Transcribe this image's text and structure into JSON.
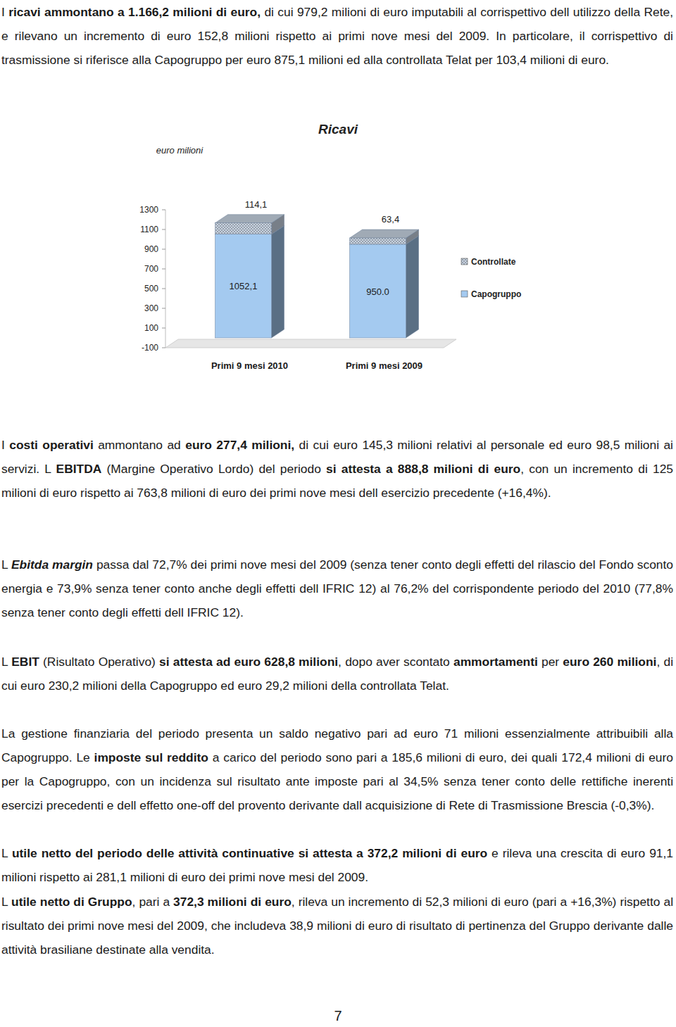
{
  "paragraphs": [
    {
      "runs": [
        {
          "text": "I "
        },
        {
          "text": "ricavi ammontano a 1.166,2 milioni di euro,",
          "bold": true
        },
        {
          "text": " di cui 979,2 milioni di euro imputabili al corrispettivo dell utilizzo della Rete, e rilevano un incremento di euro 152,8 milioni rispetto ai primi nove mesi del 2009. In particolare, il corrispettivo di trasmissione si riferisce alla Capogruppo per euro 875,1 milioni ed alla controllata Telat per  103,4 milioni di euro."
        }
      ]
    },
    {
      "runs": [
        {
          "text": "I "
        },
        {
          "text": "costi operativi",
          "bold": true
        },
        {
          "text": " ammontano ad "
        },
        {
          "text": "euro 277,4 milioni,",
          "bold": true
        },
        {
          "text": " di cui euro 145,3 milioni relativi al personale ed euro 98,5 milioni ai servizi. L "
        },
        {
          "text": "EBITDA",
          "bold": true
        },
        {
          "text": " (Margine Operativo Lordo) del periodo "
        },
        {
          "text": "si attesta a 888,8 milioni di euro",
          "bold": true
        },
        {
          "text": ", con un incremento di 125 milioni di euro rispetto ai 763,8 milioni di euro dei primi nove mesi dell esercizio precedente (+16,4%)."
        }
      ]
    },
    {
      "runs": [
        {
          "text": "L "
        },
        {
          "text": "Ebitda margin",
          "bold": true,
          "italic": true
        },
        {
          "text": " passa dal 72,7% dei primi nove mesi del 2009 (senza tener conto degli effetti del rilascio del Fondo sconto energia e 73,9% senza tener conto anche degli effetti dell IFRIC 12) al 76,2% del corrispondente periodo del 2010 (77,8% senza tener conto degli effetti dell IFRIC 12)."
        }
      ]
    },
    {
      "runs": [
        {
          "text": "L "
        },
        {
          "text": "EBIT",
          "bold": true
        },
        {
          "text": " (Risultato Operativo) "
        },
        {
          "text": "si attesta ad euro 628,8 milioni",
          "bold": true
        },
        {
          "text": ", dopo aver scontato "
        },
        {
          "text": "ammortamenti",
          "bold": true
        },
        {
          "text": " per "
        },
        {
          "text": "euro 260 milioni",
          "bold": true
        },
        {
          "text": ", di cui euro 230,2 milioni della Capogruppo ed euro 29,2 milioni della controllata Telat."
        }
      ]
    },
    {
      "runs": [
        {
          "text": "La gestione finanziaria del periodo presenta un saldo negativo pari ad euro 71 milioni essenzialmente attribuibili alla Capogruppo. Le "
        },
        {
          "text": "imposte sul reddito",
          "bold": true
        },
        {
          "text": " a carico del periodo sono pari a 185,6 milioni di euro, dei quali 172,4 milioni di euro per la Capogruppo, con un incidenza sul risultato ante imposte pari al 34,5% senza tener conto delle rettifiche inerenti esercizi precedenti e dell effetto one-off del provento derivante dall acquisizione di Rete di Trasmissione Brescia (-0,3%)."
        }
      ]
    },
    {
      "runs": [
        {
          "text": "L "
        },
        {
          "text": "utile netto del periodo delle attività continuative si attesta a 372,2 milioni di euro",
          "bold": true
        },
        {
          "text": " e rileva una crescita di euro 91,1 milioni rispetto ai 281,1 milioni di euro dei primi nove mesi del 2009."
        }
      ]
    },
    {
      "runs": [
        {
          "text": "L "
        },
        {
          "text": "utile netto di Gruppo",
          "bold": true
        },
        {
          "text": ", pari a "
        },
        {
          "text": "372,3 milioni di euro",
          "bold": true
        },
        {
          "text": ", rileva un incremento di 52,3 milioni di euro (pari a +16,3%) rispetto al risultato dei primi nove mesi del 2009, che includeva 38,9 milioni di euro di risultato di pertinenza del Gruppo derivante dalle attività brasiliane destinate alla vendita."
        }
      ]
    }
  ],
  "chart_data": {
    "type": "bar",
    "title": "Ricavi",
    "y_label": "euro milioni",
    "categories": [
      "Primi 9 mesi 2010",
      "Primi 9 mesi 2009"
    ],
    "stacked": true,
    "data_labels": true,
    "legend": "right",
    "series": [
      {
        "name": "Capogruppo",
        "color": "#a4caf0",
        "values": [
          1052.1,
          950.0
        ],
        "value_labels": [
          "1052,1",
          "950.0"
        ]
      },
      {
        "name": "Controllate",
        "color": "#c8d4e2",
        "values": [
          114.1,
          63.4
        ],
        "value_labels": [
          "114,1",
          "63,4"
        ]
      }
    ],
    "ylim": [
      -100,
      1300
    ],
    "yticks": [
      -100,
      100,
      300,
      500,
      700,
      900,
      1100,
      1300
    ]
  },
  "page_number": "7"
}
